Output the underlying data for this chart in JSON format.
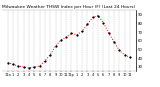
{
  "title": "Milwaukee Weather THSW Index per Hour (F) (Last 24 Hours)",
  "x_values": [
    0,
    1,
    2,
    3,
    4,
    5,
    6,
    7,
    8,
    9,
    10,
    11,
    12,
    13,
    14,
    15,
    16,
    17,
    18,
    19,
    20,
    21,
    22,
    23
  ],
  "y_values": [
    35,
    33,
    31,
    30,
    29,
    30,
    31,
    37,
    44,
    54,
    61,
    64,
    69,
    67,
    71,
    79,
    87,
    89,
    81,
    69,
    59,
    49,
    44,
    41
  ],
  "line_color": "red",
  "marker_color": "black",
  "background_color": "white",
  "grid_color": "#999999",
  "title_color": "black",
  "title_fontsize": 3.2,
  "ylim": [
    25,
    95
  ],
  "yticks": [
    30,
    40,
    50,
    60,
    70,
    80,
    90
  ],
  "ylabel_fontsize": 2.8,
  "xlabel_fontsize": 2.5,
  "grid_linestyle": "--",
  "linewidth": 0.7,
  "markersize": 1.2,
  "hour_labels": [
    "12a",
    "1",
    "2",
    "3",
    "4",
    "5",
    "6",
    "7",
    "8",
    "9",
    "10",
    "11",
    "12p",
    "1",
    "2",
    "3",
    "4",
    "5",
    "6",
    "7",
    "8",
    "9",
    "10",
    "11"
  ]
}
